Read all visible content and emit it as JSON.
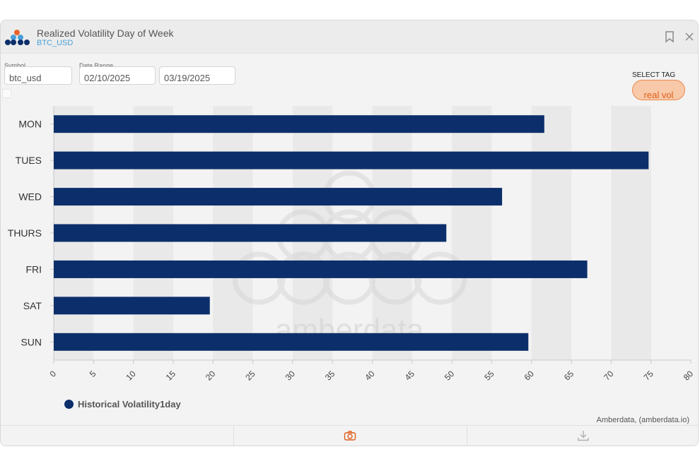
{
  "window": {
    "title": "Realized Volatility Day of Week",
    "subtitle": "BTC_USD"
  },
  "controls": {
    "symbol_label": "Symbol",
    "symbol_value": "btc_usd",
    "date_range_label": "Date Range",
    "date_start": "02/10/2025",
    "date_end": "03/19/2025",
    "select_tag_label": "SELECT TAG",
    "selected_tag": "real vol"
  },
  "watermark": "amberdata",
  "credit": "Amberdata, (amberdata.io)",
  "colors": {
    "bar": "#0c2f6b",
    "accent": "#e05d18",
    "link": "#4a9fd9"
  },
  "icons": {
    "bookmark": "bookmark-icon",
    "close": "close-icon",
    "camera": "camera-icon",
    "download": "download-icon"
  },
  "chart_data": {
    "type": "bar",
    "orientation": "horizontal",
    "categories": [
      "MON",
      "TUES",
      "WED",
      "THURS",
      "FRI",
      "SAT",
      "SUN"
    ],
    "series": [
      {
        "name": "Historical Volatility1day",
        "values": [
          61.6,
          74.7,
          56.3,
          49.3,
          67.0,
          19.6,
          59.6
        ]
      }
    ],
    "xlim": [
      0,
      80
    ],
    "xticks": [
      "0",
      "5",
      "10",
      "15",
      "20",
      "25",
      "30",
      "35",
      "40",
      "45",
      "50",
      "55",
      "60",
      "65",
      "70",
      "75",
      "80"
    ],
    "legend_position": "bottom-left"
  }
}
